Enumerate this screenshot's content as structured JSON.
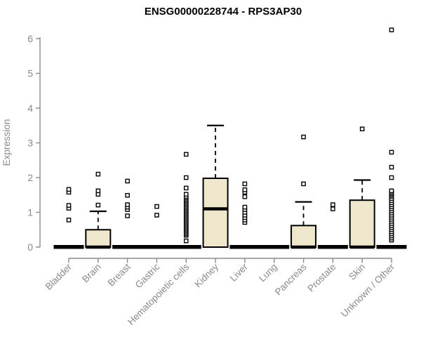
{
  "chart_data": {
    "type": "boxplot",
    "title": "ENSG00000228744 - RPS3AP30",
    "ylabel": "Expression",
    "xlabel": "",
    "ylim": [
      0,
      6
    ],
    "yticks": [
      0,
      1,
      2,
      3,
      4,
      5,
      6
    ],
    "grid": false,
    "legend": "none",
    "categories": [
      "Bladder",
      "Brain",
      "Breast",
      "Gastric",
      "Hematopoietic cells",
      "Kidney",
      "Liver",
      "Lung",
      "Pancreas",
      "Prostate",
      "Skin",
      "Unknown / Other"
    ],
    "series": [
      {
        "category": "Bladder",
        "low": 0,
        "q1": 0,
        "median": 0,
        "q3": 0,
        "high": 0,
        "outliers": [
          0.78,
          1.12,
          1.2,
          1.58,
          1.66
        ]
      },
      {
        "category": "Brain",
        "low": 0,
        "q1": 0,
        "median": 0,
        "q3": 0.5,
        "high": 1.03,
        "outliers": [
          1.21,
          1.52,
          1.62,
          2.1
        ]
      },
      {
        "category": "Breast",
        "low": 0,
        "q1": 0,
        "median": 0,
        "q3": 0,
        "high": 0,
        "outliers": [
          0.9,
          1.08,
          1.15,
          1.22,
          1.49,
          1.9
        ]
      },
      {
        "category": "Gastric",
        "low": 0,
        "q1": 0,
        "median": 0,
        "q3": 0,
        "high": 0,
        "outliers": [
          0.92,
          1.17
        ]
      },
      {
        "category": "Hematopoietic cells",
        "low": 0,
        "q1": 0,
        "median": 0,
        "q3": 0,
        "high": 0,
        "outliers": [
          0.18,
          0.34,
          0.38,
          0.42,
          0.46,
          0.5,
          0.54,
          0.58,
          0.62,
          0.66,
          0.7,
          0.74,
          0.78,
          0.82,
          0.86,
          0.9,
          0.94,
          0.98,
          1.02,
          1.06,
          1.1,
          1.14,
          1.18,
          1.22,
          1.26,
          1.3,
          1.34,
          1.38,
          1.42,
          1.46,
          1.52,
          1.7,
          2.0,
          2.67
        ]
      },
      {
        "category": "Kidney",
        "low": 0,
        "q1": 0,
        "median": 1.1,
        "q3": 1.98,
        "high": 3.5,
        "outliers": []
      },
      {
        "category": "Liver",
        "low": 0,
        "q1": 0,
        "median": 0,
        "q3": 0,
        "high": 0,
        "outliers": [
          0.71,
          0.78,
          0.85,
          0.92,
          1.0,
          1.08,
          1.15,
          1.45,
          1.58,
          1.65,
          1.82
        ]
      },
      {
        "category": "Lung",
        "low": 0,
        "q1": 0,
        "median": 0,
        "q3": 0,
        "high": 0,
        "outliers": []
      },
      {
        "category": "Pancreas",
        "low": 0,
        "q1": 0,
        "median": 0,
        "q3": 0.62,
        "high": 1.3,
        "outliers": [
          1.82,
          3.17
        ]
      },
      {
        "category": "Prostate",
        "low": 0,
        "q1": 0,
        "median": 0,
        "q3": 0,
        "high": 0,
        "outliers": [
          1.1,
          1.22
        ]
      },
      {
        "category": "Skin",
        "low": 0,
        "q1": 0,
        "median": 0,
        "q3": 1.35,
        "high": 1.93,
        "outliers": [
          3.4
        ]
      },
      {
        "category": "Unknown / Other",
        "low": 0,
        "q1": 0,
        "median": 0,
        "q3": 0,
        "high": 0,
        "outliers": [
          0.2,
          0.26,
          0.32,
          0.38,
          0.44,
          0.5,
          0.56,
          0.62,
          0.68,
          0.74,
          0.8,
          0.86,
          0.92,
          0.98,
          1.04,
          1.1,
          1.16,
          1.22,
          1.28,
          1.34,
          1.4,
          1.46,
          1.5,
          1.54,
          1.58,
          1.62,
          2.0,
          2.3,
          2.73,
          6.25
        ]
      }
    ],
    "style": {
      "box_fill": "#efe7cb",
      "line_color": "#000000",
      "axis_color": "#8a8a8a",
      "title_color": "#000000",
      "background": "#ffffff",
      "outlier_fill": "#ffffff"
    }
  }
}
